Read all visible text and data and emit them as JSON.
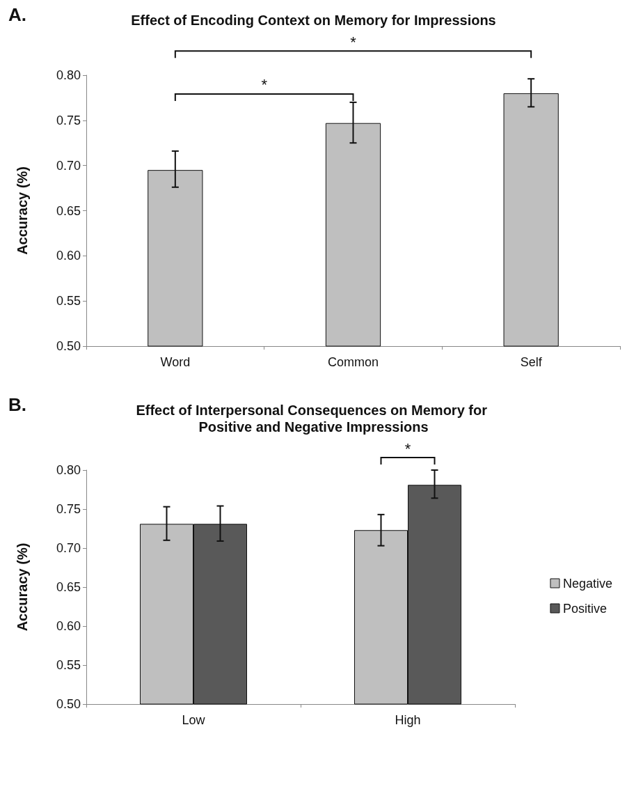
{
  "chart_data": [
    {
      "type": "bar",
      "title": "Effect of Encoding Context on Memory for Impressions",
      "ylabel": "Accuracy (%)",
      "annotations": [
        "A.",
        "*",
        "*"
      ],
      "categories": [
        "Word",
        "Common",
        "Self"
      ],
      "series": [
        {
          "color": "#bfbfbf",
          "values": [
            0.695,
            0.747,
            0.78
          ],
          "errors": [
            [
              0.676,
              0.716
            ],
            [
              0.725,
              0.77
            ],
            [
              0.765,
              0.796
            ]
          ]
        }
      ],
      "ylim": [
        0.5,
        0.8
      ],
      "yticks": [
        {
          "value": 0.5,
          "label": "0.50"
        },
        {
          "value": 0.55,
          "label": "0.55"
        },
        {
          "value": 0.6,
          "label": "0.60"
        },
        {
          "value": 0.65,
          "label": "0.65"
        },
        {
          "value": 0.7,
          "label": "0.70"
        },
        {
          "value": 0.75,
          "label": "0.75"
        },
        {
          "value": 0.8,
          "label": "0.80"
        }
      ],
      "grid": false
    },
    {
      "type": "bar",
      "title": "Effect of Interpersonal Consequences on Memory for Positive and Negative Impressions",
      "ylabel": "Accuracy (%)",
      "annotations": [
        "B.",
        "*"
      ],
      "categories": [
        "Low",
        "High"
      ],
      "series": [
        {
          "name": "Negative",
          "color": "#bfbfbf",
          "values": [
            0.731,
            0.723
          ],
          "errors": [
            [
              0.71,
              0.753
            ],
            [
              0.703,
              0.743
            ]
          ]
        },
        {
          "name": "Positive",
          "color": "#595959",
          "values": [
            0.731,
            0.781
          ],
          "errors": [
            [
              0.709,
              0.754
            ],
            [
              0.764,
              0.8
            ]
          ]
        }
      ],
      "ylim": [
        0.5,
        0.8
      ],
      "yticks": [
        {
          "value": 0.5,
          "label": "0.50"
        },
        {
          "value": 0.55,
          "label": "0.55"
        },
        {
          "value": 0.6,
          "label": "0.60"
        },
        {
          "value": 0.65,
          "label": "0.65"
        },
        {
          "value": 0.7,
          "label": "0.70"
        },
        {
          "value": 0.75,
          "label": "0.75"
        },
        {
          "value": 0.8,
          "label": "0.80"
        }
      ],
      "grid": false,
      "legend": "right"
    }
  ]
}
